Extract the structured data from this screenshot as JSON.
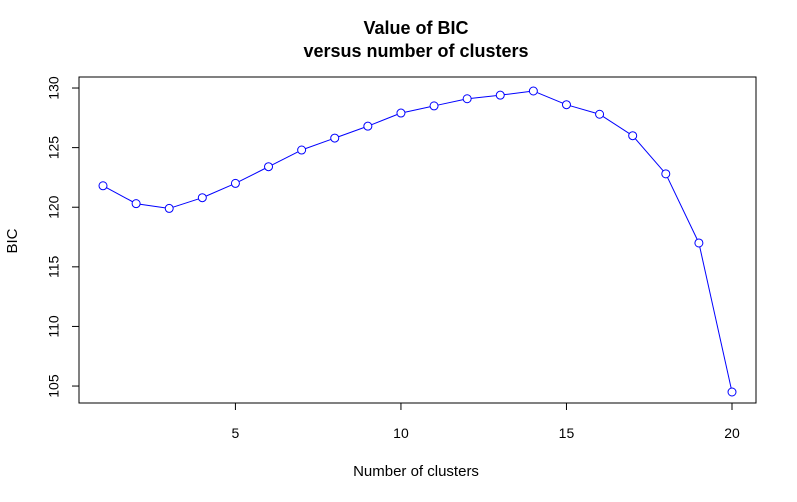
{
  "chart_data": {
    "type": "line",
    "title": "Value of BIC",
    "subtitle": "versus number of clusters",
    "xlabel": "Number of clusters",
    "ylabel": "BIC",
    "xlim": [
      1,
      20
    ],
    "ylim": [
      104.5,
      129.75
    ],
    "x_ticks": [
      5,
      10,
      15,
      20
    ],
    "x_tick_labels": [
      "5",
      "10",
      "15",
      "20"
    ],
    "y_ticks": [
      105,
      110,
      115,
      120,
      125,
      130
    ],
    "y_tick_labels": [
      "105",
      "110",
      "115",
      "120",
      "125",
      "130"
    ],
    "grid": false,
    "legend": "none",
    "series": [
      {
        "color": "#0000ff",
        "marker": "open-circle",
        "x": [
          1,
          2,
          3,
          4,
          5,
          6,
          7,
          8,
          9,
          10,
          11,
          12,
          13,
          14,
          15,
          16,
          17,
          18,
          19,
          20
        ],
        "values": [
          121.8,
          120.3,
          119.9,
          120.8,
          122.0,
          123.4,
          124.8,
          125.8,
          126.8,
          127.9,
          128.5,
          129.1,
          129.4,
          129.75,
          128.6,
          127.8,
          126.0,
          122.8,
          117.0,
          104.5
        ]
      }
    ]
  }
}
